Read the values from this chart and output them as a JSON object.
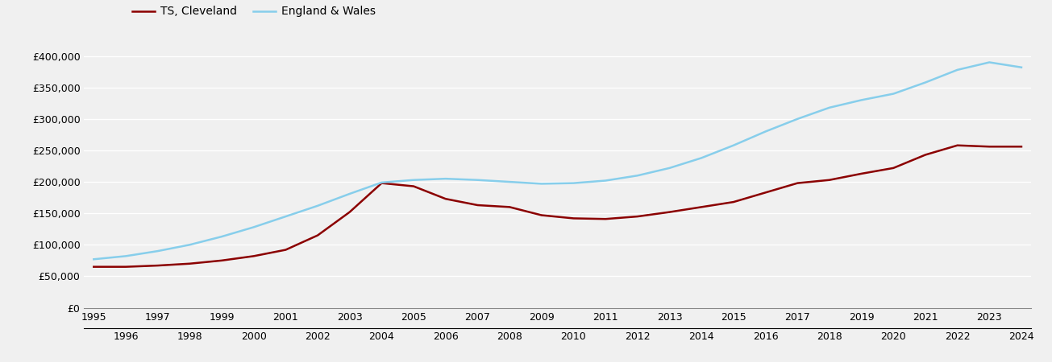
{
  "title": "",
  "legend_entries": [
    "TS, Cleveland",
    "England & Wales"
  ],
  "cleveland_color": "#8B0000",
  "england_color": "#87CEEB",
  "background_color": "#F0F0F0",
  "ylim": [
    0,
    420000
  ],
  "yticks": [
    0,
    50000,
    100000,
    150000,
    200000,
    250000,
    300000,
    350000,
    400000
  ],
  "years": [
    1995,
    1996,
    1997,
    1998,
    1999,
    2000,
    2001,
    2002,
    2003,
    2004,
    2005,
    2006,
    2007,
    2008,
    2009,
    2010,
    2011,
    2012,
    2013,
    2014,
    2015,
    2016,
    2017,
    2018,
    2019,
    2020,
    2021,
    2022,
    2023,
    2024
  ],
  "cleveland": [
    65000,
    65000,
    67000,
    70000,
    75000,
    82000,
    92000,
    115000,
    152000,
    198000,
    193000,
    173000,
    163000,
    160000,
    147000,
    142000,
    141000,
    145000,
    152000,
    160000,
    168000,
    183000,
    198000,
    203000,
    213000,
    222000,
    243000,
    258000,
    256000,
    256000
  ],
  "england": [
    77000,
    82000,
    90000,
    100000,
    113000,
    128000,
    145000,
    162000,
    181000,
    199000,
    203000,
    205000,
    203000,
    200000,
    197000,
    198000,
    202000,
    210000,
    222000,
    238000,
    258000,
    280000,
    300000,
    318000,
    330000,
    340000,
    358000,
    378000,
    390000,
    382000
  ]
}
